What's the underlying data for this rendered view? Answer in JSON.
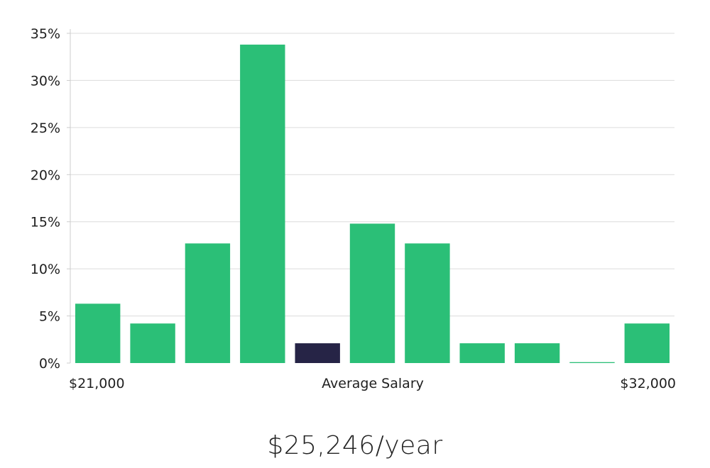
{
  "chart_data": {
    "type": "bar",
    "values": [
      6.3,
      4.2,
      12.7,
      33.8,
      2.1,
      14.8,
      12.7,
      2.1,
      2.1,
      0.1,
      4.2
    ],
    "highlight_index": 4,
    "ylim": [
      0,
      35
    ],
    "y_ticks": [
      0,
      5,
      10,
      15,
      20,
      25,
      30,
      35
    ],
    "y_tick_labels": [
      "0%",
      "5%",
      "10%",
      "15%",
      "20%",
      "25%",
      "30%",
      "35%"
    ],
    "x_left_label": "$21,000",
    "x_center_label": "Average Salary",
    "x_right_label": "$32,000",
    "grid": true,
    "colors": {
      "bar": "#2bbf77",
      "highlight": "#262446",
      "grid": "#dcdcdc",
      "axis": "#cccccc"
    }
  },
  "summary": {
    "salary_text": "$25,246/year"
  }
}
